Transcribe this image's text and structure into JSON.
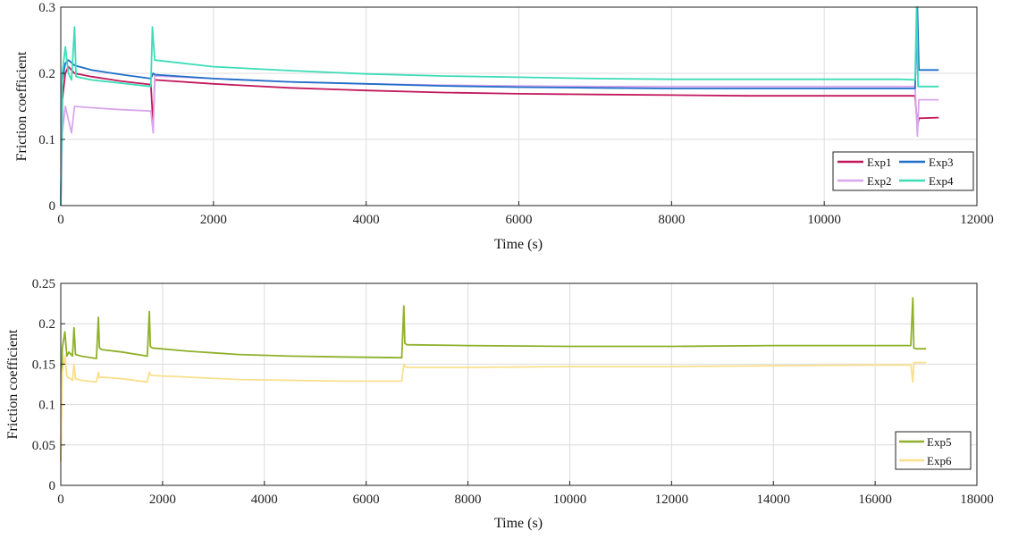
{
  "chart_data": [
    {
      "type": "line",
      "xlabel": "Time (s)",
      "ylabel": "Friction coefficient",
      "xlim": [
        0,
        12000
      ],
      "ylim": [
        0,
        0.3
      ],
      "xticks": [
        0,
        2000,
        4000,
        6000,
        8000,
        10000,
        12000
      ],
      "xtick_labels": [
        "0",
        "2000",
        "4000",
        "6000",
        "8000",
        "10000",
        "12000"
      ],
      "yticks": [
        0,
        0.1,
        0.2,
        0.3
      ],
      "ytick_labels": [
        "0",
        "0.1",
        "0.2",
        "0.3"
      ],
      "grid": true,
      "legend_position": "bottom-right",
      "legend_columns": 2,
      "series": [
        {
          "name": "Exp1",
          "color": "#c2185b",
          "x": [
            0,
            20,
            60,
            100,
            180,
            400,
            800,
            1180,
            1210,
            1230,
            2000,
            3000,
            4000,
            5000,
            6000,
            7000,
            8000,
            9000,
            10000,
            11000,
            11190,
            11220,
            11240,
            11500
          ],
          "y": [
            0.0,
            0.16,
            0.2,
            0.21,
            0.2,
            0.195,
            0.188,
            0.183,
            0.12,
            0.19,
            0.184,
            0.178,
            0.174,
            0.171,
            0.169,
            0.168,
            0.167,
            0.166,
            0.166,
            0.166,
            0.166,
            0.12,
            0.132,
            0.133
          ]
        },
        {
          "name": "Exp2",
          "color": "#d9a6ee",
          "x": [
            0,
            20,
            60,
            100,
            140,
            180,
            400,
            800,
            1180,
            1210,
            1230,
            2000,
            3000,
            4000,
            5000,
            6000,
            7000,
            8000,
            9000,
            10000,
            11000,
            11190,
            11220,
            11240,
            11500
          ],
          "y": [
            0.0,
            0.11,
            0.15,
            0.13,
            0.11,
            0.15,
            0.148,
            0.145,
            0.143,
            0.11,
            0.196,
            0.192,
            0.187,
            0.184,
            0.182,
            0.181,
            0.18,
            0.18,
            0.18,
            0.18,
            0.18,
            0.18,
            0.105,
            0.16,
            0.16
          ]
        },
        {
          "name": "Exp3",
          "color": "#1f6fc9",
          "x": [
            0,
            20,
            60,
            100,
            180,
            400,
            800,
            1180,
            1210,
            1230,
            2000,
            3000,
            4000,
            5000,
            6000,
            7000,
            8000,
            9000,
            10000,
            11000,
            11190,
            11220,
            11240,
            11500
          ],
          "y": [
            0.0,
            0.19,
            0.215,
            0.22,
            0.212,
            0.205,
            0.198,
            0.192,
            0.2,
            0.198,
            0.192,
            0.187,
            0.184,
            0.181,
            0.179,
            0.178,
            0.177,
            0.177,
            0.177,
            0.177,
            0.177,
            0.3,
            0.205,
            0.205
          ]
        },
        {
          "name": "Exp4",
          "color": "#3ddcb8",
          "x": [
            0,
            20,
            60,
            80,
            100,
            140,
            180,
            200,
            400,
            800,
            1180,
            1200,
            1230,
            2000,
            3000,
            4000,
            5000,
            6000,
            7000,
            8000,
            9000,
            10000,
            11000,
            11190,
            11210,
            11230,
            11500
          ],
          "y": [
            0.0,
            0.2,
            0.24,
            0.22,
            0.2,
            0.19,
            0.27,
            0.195,
            0.19,
            0.185,
            0.18,
            0.27,
            0.22,
            0.21,
            0.204,
            0.199,
            0.196,
            0.194,
            0.192,
            0.191,
            0.191,
            0.191,
            0.191,
            0.19,
            0.3,
            0.18,
            0.18
          ]
        }
      ]
    },
    {
      "type": "line",
      "xlabel": "Time (s)",
      "ylabel": "Friction coefficient",
      "xlim": [
        0,
        18000
      ],
      "ylim": [
        0,
        0.25
      ],
      "xticks": [
        0,
        2000,
        4000,
        6000,
        8000,
        10000,
        12000,
        14000,
        16000,
        18000
      ],
      "xtick_labels": [
        "0",
        "2000",
        "4000",
        "6000",
        "8000",
        "10000",
        "12000",
        "14000",
        "16000",
        "18000"
      ],
      "yticks": [
        0,
        0.05,
        0.1,
        0.15,
        0.2,
        0.25
      ],
      "ytick_labels": [
        "0",
        "0.05",
        "0.1",
        "0.15",
        "0.2",
        "0.25"
      ],
      "grid": true,
      "legend_position": "bottom-right",
      "legend_columns": 1,
      "series": [
        {
          "name": "Exp5",
          "color": "#8fb02a",
          "x": [
            0,
            30,
            80,
            120,
            160,
            230,
            260,
            290,
            400,
            700,
            740,
            760,
            800,
            1200,
            1700,
            1740,
            1760,
            1800,
            2500,
            3500,
            4500,
            5500,
            6700,
            6740,
            6760,
            6800,
            8000,
            10000,
            12000,
            14000,
            16000,
            16700,
            16740,
            16760,
            16800,
            17000
          ],
          "y": [
            0.03,
            0.17,
            0.19,
            0.16,
            0.165,
            0.16,
            0.195,
            0.162,
            0.16,
            0.157,
            0.208,
            0.17,
            0.168,
            0.165,
            0.16,
            0.215,
            0.172,
            0.17,
            0.166,
            0.162,
            0.16,
            0.159,
            0.158,
            0.222,
            0.176,
            0.174,
            0.173,
            0.172,
            0.172,
            0.173,
            0.173,
            0.173,
            0.232,
            0.17,
            0.169,
            0.169
          ]
        },
        {
          "name": "Exp6",
          "color": "#f9df8c",
          "x": [
            0,
            30,
            80,
            120,
            160,
            230,
            260,
            290,
            400,
            700,
            740,
            760,
            800,
            1200,
            1700,
            1740,
            1760,
            1800,
            2500,
            3500,
            4500,
            5500,
            6700,
            6740,
            6760,
            6800,
            8000,
            10000,
            12000,
            14000,
            16000,
            16700,
            16740,
            16760,
            16800,
            17000
          ],
          "y": [
            0.03,
            0.14,
            0.16,
            0.135,
            0.133,
            0.13,
            0.15,
            0.132,
            0.13,
            0.128,
            0.14,
            0.133,
            0.134,
            0.132,
            0.128,
            0.14,
            0.137,
            0.136,
            0.134,
            0.131,
            0.13,
            0.129,
            0.129,
            0.15,
            0.147,
            0.146,
            0.146,
            0.147,
            0.147,
            0.148,
            0.149,
            0.149,
            0.128,
            0.152,
            0.152,
            0.152
          ]
        }
      ]
    }
  ]
}
